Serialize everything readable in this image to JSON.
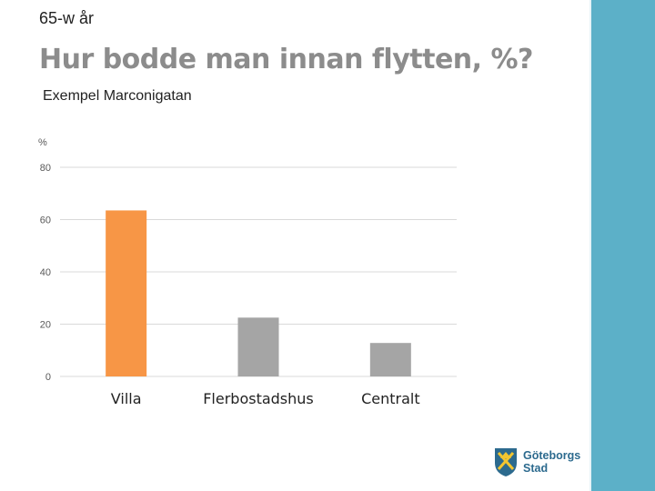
{
  "slide": {
    "tag": "65-w år",
    "title": "Hur bodde man innan flytten, %?",
    "subtitle": "Exempel Marconigatan"
  },
  "chart_data": {
    "type": "bar",
    "ylabel": "%",
    "ylim": [
      0,
      80
    ],
    "yticks": [
      0,
      20,
      40,
      60,
      80
    ],
    "grid": true,
    "categories": [
      "Villa",
      "Flerbostadshus",
      "Centralt"
    ],
    "values": [
      63.5,
      22.5,
      12.8
    ],
    "colors": [
      "#f79646",
      "#a5a5a5",
      "#a5a5a5"
    ]
  },
  "logo": {
    "line1": "Göteborgs",
    "line2": "Stad",
    "colors": {
      "blue": "#2c6a8e",
      "yellow": "#f2c530"
    }
  },
  "theme": {
    "sidebar": "#5cb0c8"
  }
}
